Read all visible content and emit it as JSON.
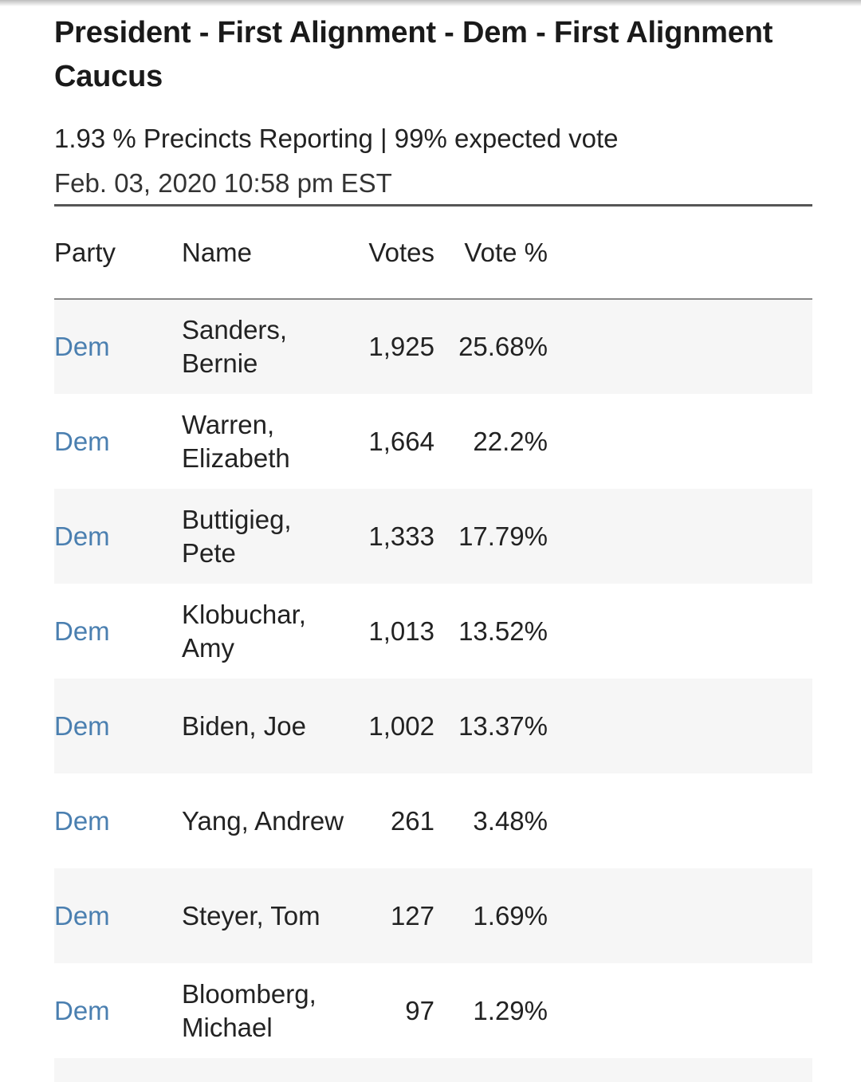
{
  "header": {
    "title": "President - First Alignment - Dem - First Alignment Caucus",
    "status": "1.93 % Precincts Reporting | 99% expected vote",
    "timestamp": "Feb. 03, 2020 10:58 pm EST"
  },
  "table": {
    "columns": {
      "party": "Party",
      "name": "Name",
      "votes": "Votes",
      "pct": "Vote %"
    },
    "rows": [
      {
        "party": "Dem",
        "name": "Sanders, Bernie",
        "votes": "1,925",
        "pct": "25.68%"
      },
      {
        "party": "Dem",
        "name": "Warren, Elizabeth",
        "votes": "1,664",
        "pct": "22.2%"
      },
      {
        "party": "Dem",
        "name": "Buttigieg, Pete",
        "votes": "1,333",
        "pct": "17.79%"
      },
      {
        "party": "Dem",
        "name": "Klobuchar, Amy",
        "votes": "1,013",
        "pct": "13.52%"
      },
      {
        "party": "Dem",
        "name": "Biden, Joe",
        "votes": "1,002",
        "pct": "13.37%"
      },
      {
        "party": "Dem",
        "name": "Yang, Andrew",
        "votes": "261",
        "pct": "3.48%"
      },
      {
        "party": "Dem",
        "name": "Steyer, Tom",
        "votes": "127",
        "pct": "1.69%"
      },
      {
        "party": "Dem",
        "name": "Bloomberg, Michael",
        "votes": "97",
        "pct": "1.29%"
      }
    ]
  },
  "colors": {
    "party_link": "#4a7fb0",
    "row_stripe": "#f6f6f6",
    "text": "#222222"
  }
}
